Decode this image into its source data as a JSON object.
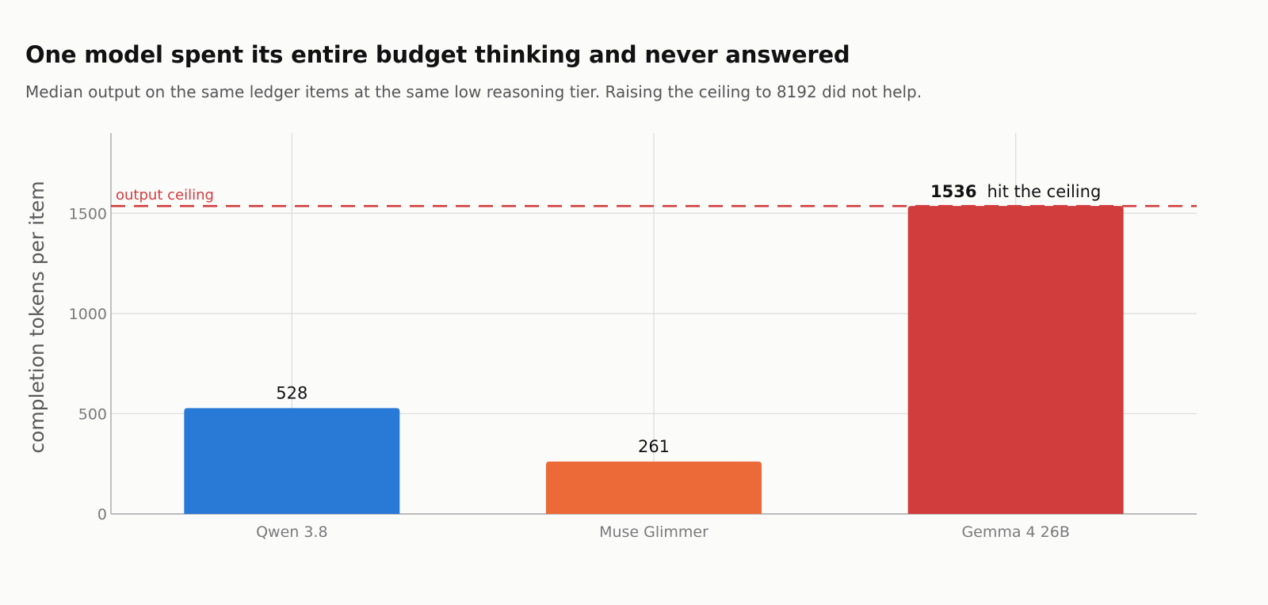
{
  "header": {
    "title": "One model spent its entire budget thinking and never answered",
    "subtitle": "Median output on the same ledger items at the same low reasoning tier. Raising the ceiling to 8192 did not help."
  },
  "chart_data": {
    "type": "bar",
    "title": "One model spent its entire budget thinking and never answered",
    "subtitle": "Median output on the same ledger items at the same low reasoning tier. Raising the ceiling to 8192 did not help.",
    "xlabel": "",
    "ylabel": "completion tokens per item",
    "categories": [
      "Qwen 3.8",
      "Muse Glimmer",
      "Gemma 4 26B"
    ],
    "values": [
      528,
      261,
      1536
    ],
    "colors": [
      "#2979d6",
      "#eb6a37",
      "#d13c3c"
    ],
    "ylim": [
      0,
      1900
    ],
    "yticks": [
      0,
      500,
      1000,
      1500
    ],
    "grid": true,
    "reference_line": {
      "value": 1536,
      "label": "output ceiling",
      "color": "#d13c3c",
      "style": "dashed"
    },
    "annotations": [
      {
        "category": "Gemma 4 26B",
        "text": "hit the ceiling"
      }
    ]
  }
}
